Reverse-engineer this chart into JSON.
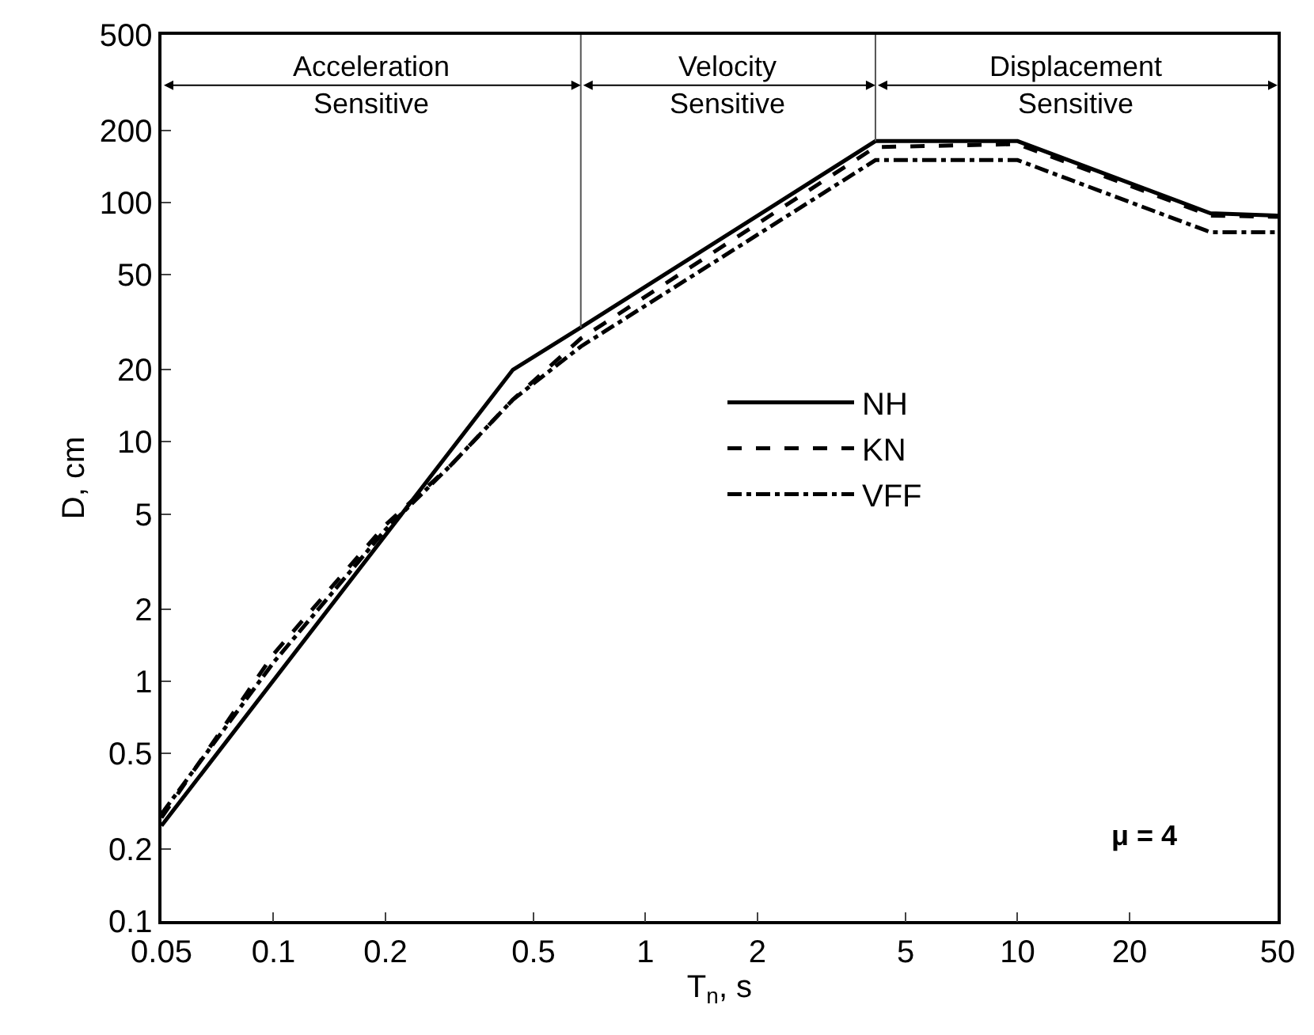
{
  "chart_data": {
    "type": "line",
    "xlabel": "T$_{n}$, s",
    "ylabel": "D, cm",
    "log": "xy",
    "grid": false,
    "legend": "center",
    "marker": "none",
    "xlim": [
      0.05,
      50
    ],
    "xticks": [
      0.05,
      0.1,
      0.2,
      0.5,
      1,
      2,
      5,
      10,
      20,
      50
    ],
    "ylim": [
      0.1,
      500
    ],
    "yticks": [
      0.1,
      0.2,
      0.5,
      1,
      2,
      5,
      10,
      20,
      50,
      100,
      200,
      500
    ],
    "series": [
      {
        "name": "NH",
        "color": "#000000",
        "line_style": "solid",
        "x": [
          0.05,
          0.44,
          0.67,
          4.15,
          10,
          33,
          50
        ],
        "values": [
          0.25,
          20,
          30,
          180,
          180,
          90,
          88
        ]
      },
      {
        "name": "KN",
        "color": "#000000",
        "line_style": "dashed",
        "x": [
          0.05,
          0.1,
          0.2,
          0.3,
          0.44,
          0.67,
          4.15,
          10,
          33,
          50
        ],
        "values": [
          0.27,
          1.3,
          4.5,
          8,
          15,
          27,
          170,
          175,
          88,
          87
        ]
      },
      {
        "name": "VFF",
        "color": "#000000",
        "line_style": "dashdot",
        "x": [
          0.05,
          0.1,
          0.2,
          0.3,
          0.44,
          0.67,
          4.15,
          10,
          33,
          50
        ],
        "values": [
          0.28,
          1.2,
          4.3,
          8,
          15,
          25,
          150,
          150,
          75,
          75
        ]
      }
    ],
    "ref_lines": [
      {
        "axis": "x",
        "value": 0.67,
        "color": "#555555"
      },
      {
        "axis": "x",
        "value": 4.15,
        "color": "#555555"
      }
    ],
    "annotations": [
      "Acceleration\nSensitive",
      "Velocity\nSensitive",
      "Displacement\nSensitive",
      "μ = 4"
    ]
  }
}
